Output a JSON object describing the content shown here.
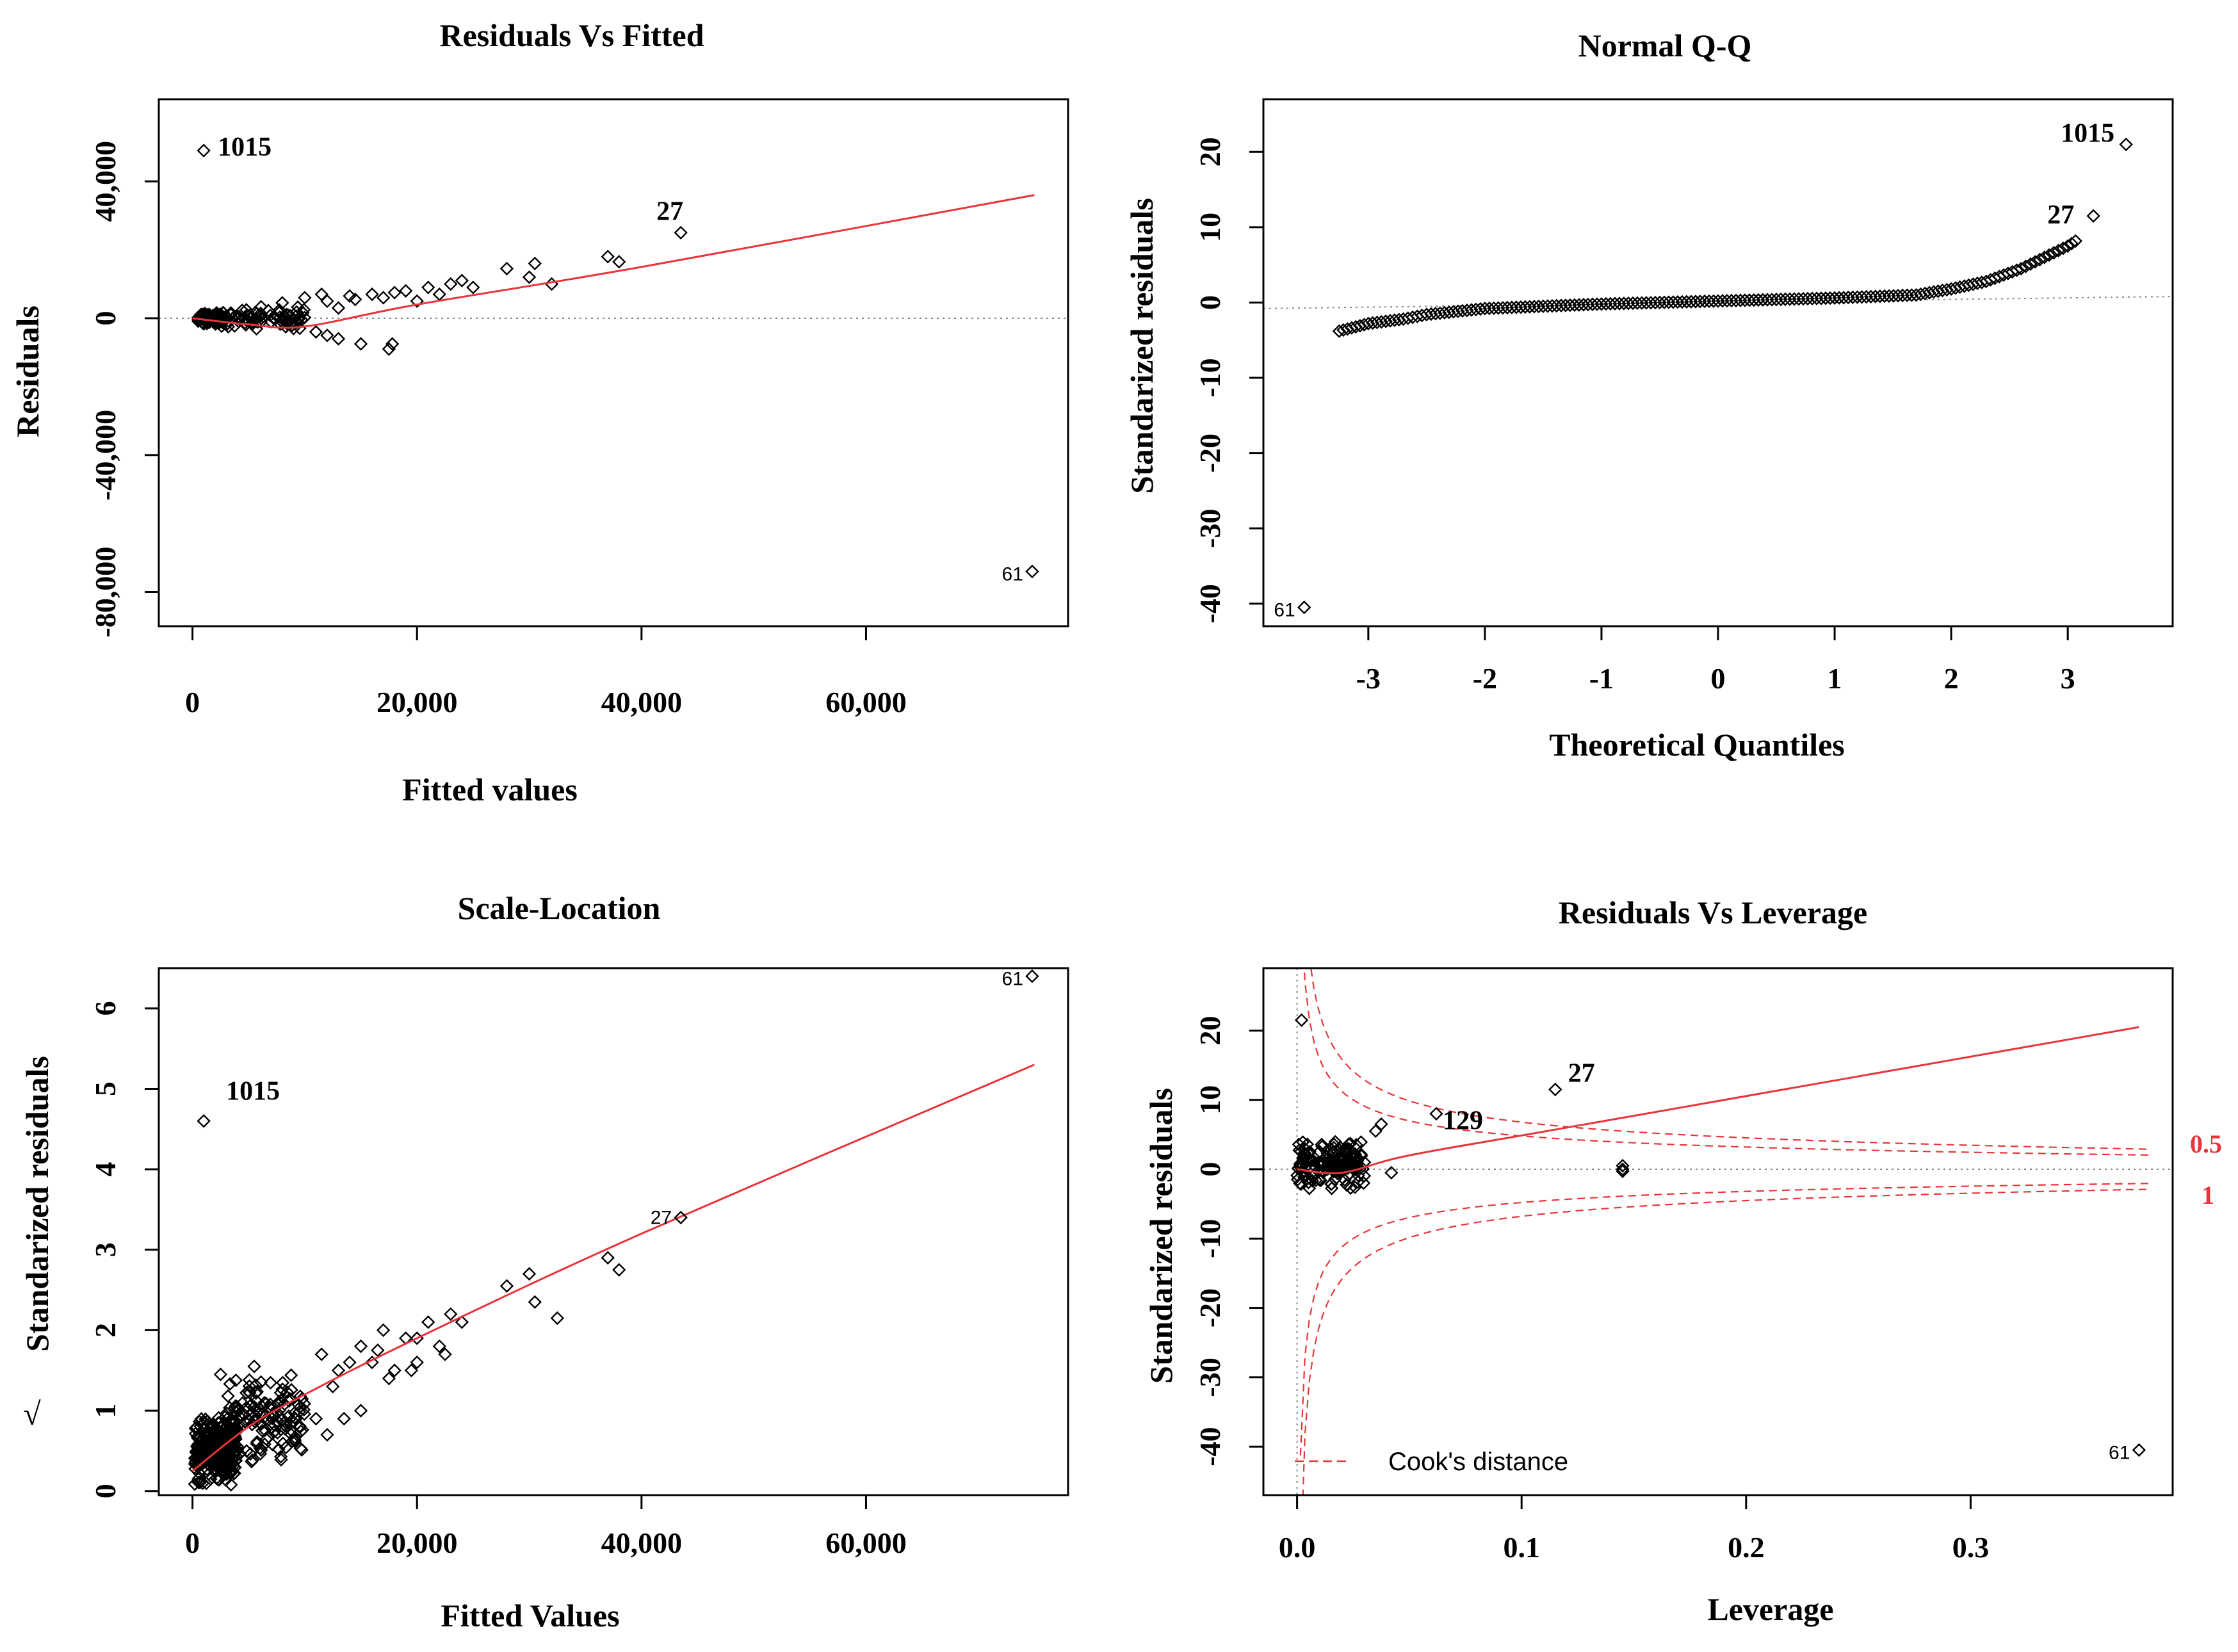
{
  "colors": {
    "smooth": "#e8343a",
    "cook": "#e8343a",
    "points": "#000000",
    "refline": "#888888"
  },
  "chart_data": [
    {
      "type": "scatter",
      "title": "Residuals Vs Fitted",
      "xlabel": "Fitted values",
      "ylabel": "Residuals",
      "xlim": [
        -3000,
        78000
      ],
      "ylim": [
        -90000,
        64000
      ],
      "xticks": [
        0,
        20000,
        40000,
        60000
      ],
      "xtick_labels": [
        "0",
        "20,000",
        "40,000",
        "60,000"
      ],
      "yticks": [
        40000,
        0,
        -40000,
        -80000
      ],
      "ytick_labels": [
        "40,000",
        "0",
        "-40,000",
        "-80,000"
      ],
      "reference_line": 0,
      "smooth": [
        [
          0,
          0
        ],
        [
          5000,
          -1800
        ],
        [
          10000,
          -2400
        ],
        [
          20000,
          4000
        ],
        [
          40000,
          15000
        ],
        [
          75000,
          36000
        ]
      ],
      "labeled_points": [
        {
          "label": "1015",
          "x": 1000,
          "y": 49000,
          "style": "bold"
        },
        {
          "label": "27",
          "x": 43500,
          "y": 25000,
          "style": "bold"
        },
        {
          "label": "61",
          "x": 74800,
          "y": -74000,
          "style": "small"
        }
      ],
      "cluster": [
        [
          500,
          2500,
          -2000,
          2000,
          120
        ],
        [
          2500,
          10000,
          -3500,
          3500,
          80
        ]
      ],
      "points": [
        [
          10000,
          6000
        ],
        [
          11500,
          7000
        ],
        [
          12000,
          5000
        ],
        [
          13000,
          3000
        ],
        [
          14000,
          6500
        ],
        [
          14500,
          5500
        ],
        [
          16000,
          7000
        ],
        [
          17000,
          6000
        ],
        [
          18000,
          7500
        ],
        [
          19000,
          8000
        ],
        [
          20000,
          5000
        ],
        [
          21000,
          9000
        ],
        [
          22000,
          7000
        ],
        [
          23000,
          10000
        ],
        [
          24000,
          11000
        ],
        [
          25000,
          9000
        ],
        [
          28000,
          14500
        ],
        [
          30000,
          12000
        ],
        [
          30500,
          16000
        ],
        [
          32000,
          10000
        ],
        [
          37000,
          18000
        ],
        [
          38000,
          16500
        ],
        [
          11000,
          -4000
        ],
        [
          12000,
          -5000
        ],
        [
          13000,
          -6000
        ],
        [
          15000,
          -7500
        ],
        [
          17500,
          -9000
        ],
        [
          17800,
          -7500
        ],
        [
          9000,
          -3000
        ],
        [
          8000,
          4500
        ]
      ]
    },
    {
      "type": "scatter",
      "title": "Normal Q-Q",
      "xlabel": "Theoretical Quantiles",
      "ylabel": "Standarized residuals",
      "xlim": [
        -3.9,
        3.9
      ],
      "ylim": [
        -43,
        27
      ],
      "xticks": [
        -3,
        -2,
        -1,
        0,
        1,
        2,
        3
      ],
      "xtick_labels": [
        "-3",
        "-2",
        "-1",
        "0",
        "1",
        "2",
        "3"
      ],
      "yticks": [
        20,
        10,
        0,
        -10,
        -20,
        -30,
        -40
      ],
      "ytick_labels": [
        "20",
        "10",
        "0",
        "-10",
        "-20",
        "-30",
        "-40"
      ],
      "reference_line": [
        [
          -3.9,
          -0.8
        ],
        [
          3.9,
          0.8
        ]
      ],
      "qq_curve": [
        [
          -3.25,
          -3.8
        ],
        [
          -3.0,
          -2.8
        ],
        [
          -2.7,
          -2.2
        ],
        [
          -2.5,
          -1.6
        ],
        [
          -2.0,
          -0.8
        ],
        [
          -1.0,
          -0.2
        ],
        [
          0.0,
          0.2
        ],
        [
          1.0,
          0.6
        ],
        [
          1.7,
          1.0
        ],
        [
          2.0,
          1.8
        ],
        [
          2.3,
          2.8
        ],
        [
          2.6,
          4.5
        ],
        [
          2.8,
          6.0
        ],
        [
          3.0,
          7.5
        ],
        [
          3.1,
          8.5
        ]
      ],
      "labeled_points": [
        {
          "label": "1015",
          "x": 3.5,
          "y": 21,
          "style": "bold"
        },
        {
          "label": "27",
          "x": 3.22,
          "y": 11.5,
          "style": "bold"
        },
        {
          "label": "61",
          "x": -3.55,
          "y": -40.5,
          "style": "small"
        }
      ]
    },
    {
      "type": "scatter",
      "title": "Scale-Location",
      "xlabel": "Fitted Values",
      "ylabel": "Standarized residuals",
      "ylabel_prefix": "√",
      "xlim": [
        -3000,
        78000
      ],
      "ylim": [
        -0.05,
        6.5
      ],
      "xticks": [
        0,
        20000,
        40000,
        60000
      ],
      "xtick_labels": [
        "0",
        "20,000",
        "40,000",
        "60,000"
      ],
      "yticks": [
        0,
        1,
        2,
        3,
        4,
        5,
        6
      ],
      "ytick_labels": [
        "0",
        "1",
        "2",
        "3",
        "4",
        "5",
        "6"
      ],
      "smooth": [
        [
          0,
          0.25
        ],
        [
          5000,
          0.8
        ],
        [
          10000,
          1.2
        ],
        [
          20000,
          1.9
        ],
        [
          40000,
          3.2
        ],
        [
          75000,
          5.3
        ]
      ],
      "labeled_points": [
        {
          "label": "61",
          "x": 74800,
          "y": 6.4,
          "style": "small"
        },
        {
          "label": "1015",
          "x": 1000,
          "y": 4.6,
          "style": "bold"
        },
        {
          "label": "27",
          "x": 43500,
          "y": 3.4,
          "style": "small"
        }
      ],
      "cluster": [
        [
          200,
          4000,
          0.05,
          1.0,
          260
        ],
        [
          3000,
          10000,
          0.3,
          1.5,
          140
        ]
      ],
      "points": [
        [
          11500,
          1.7
        ],
        [
          12500,
          1.3
        ],
        [
          13000,
          1.5
        ],
        [
          14000,
          1.6
        ],
        [
          15000,
          1.8
        ],
        [
          16000,
          1.6
        ],
        [
          17000,
          2.0
        ],
        [
          18000,
          1.5
        ],
        [
          19000,
          1.9
        ],
        [
          20000,
          1.9
        ],
        [
          21000,
          2.1
        ],
        [
          22000,
          1.8
        ],
        [
          23000,
          2.2
        ],
        [
          24000,
          2.1
        ],
        [
          28000,
          2.55
        ],
        [
          30000,
          2.7
        ],
        [
          30500,
          2.35
        ],
        [
          32500,
          2.15
        ],
        [
          37000,
          2.9
        ],
        [
          38000,
          2.75
        ],
        [
          11000,
          0.9
        ],
        [
          12000,
          0.7
        ],
        [
          13500,
          0.9
        ],
        [
          15000,
          1.0
        ],
        [
          17500,
          1.4
        ],
        [
          20000,
          1.6
        ],
        [
          22500,
          1.7
        ],
        [
          19500,
          1.5
        ],
        [
          16500,
          1.75
        ],
        [
          2500,
          1.45
        ],
        [
          5500,
          1.55
        ]
      ]
    },
    {
      "type": "scatter",
      "title": "Residuals Vs Leverage",
      "xlabel": "Leverage",
      "ylabel": "Standarized residuals",
      "xlim": [
        -0.015,
        0.39
      ],
      "ylim": [
        -47,
        29
      ],
      "xticks": [
        0.0,
        0.1,
        0.2,
        0.3
      ],
      "xtick_labels": [
        "0.0",
        "0.1",
        "0.2",
        "0.3"
      ],
      "yticks": [
        20,
        10,
        0,
        -10,
        -20,
        -30,
        -40
      ],
      "ytick_labels": [
        "20",
        "10",
        "0",
        "-10",
        "-20",
        "-30",
        "-40"
      ],
      "reference_line": 0,
      "smooth": [
        [
          0.0,
          0.0
        ],
        [
          0.02,
          -0.5
        ],
        [
          0.05,
          2.0
        ],
        [
          0.12,
          6.0
        ],
        [
          0.375,
          20.5
        ]
      ],
      "cook_levels": [
        0.5,
        1
      ],
      "cook_labels": [
        "0.5",
        "1"
      ],
      "legend": "Cook's distance",
      "labeled_points": [
        {
          "label": "27",
          "x": 0.115,
          "y": 11.5,
          "style": "bold"
        },
        {
          "label": "129",
          "x": 0.062,
          "y": 8.0,
          "style": "bold"
        },
        {
          "label": "61",
          "x": 0.375,
          "y": -40.5,
          "style": "small"
        }
      ],
      "extra_points": [
        [
          0.002,
          21.5
        ],
        [
          0.0375,
          6.5
        ],
        [
          0.035,
          5.5
        ],
        [
          0.03,
          1.0
        ],
        [
          0.042,
          -0.5
        ],
        [
          0.145,
          0.5
        ],
        [
          0.145,
          -0.3
        ],
        [
          0.145,
          0.0
        ]
      ],
      "cluster": [
        [
          0.0,
          0.03,
          -3.0,
          4.5,
          160
        ]
      ]
    }
  ]
}
